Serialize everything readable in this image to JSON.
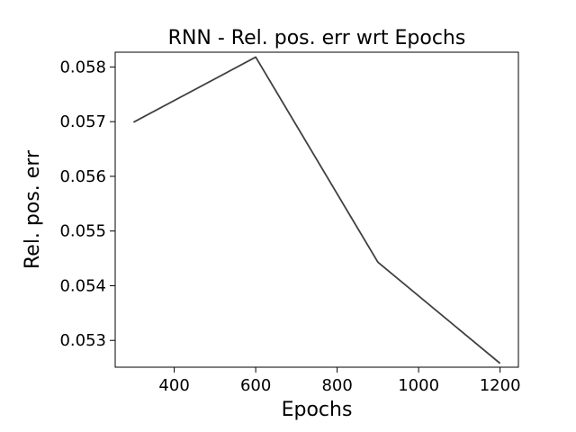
{
  "chart_data": {
    "type": "line",
    "title": "RNN - Rel. pos. err wrt Epochs",
    "xlabel": "Epochs",
    "ylabel": "Rel. pos. err",
    "x": [
      300,
      600,
      900,
      1200
    ],
    "series": [
      {
        "values": [
          0.05699,
          0.05818,
          0.05443,
          0.05258
        ],
        "color": "#404040"
      }
    ],
    "xticks": [
      400,
      600,
      800,
      1000,
      1200
    ],
    "xtick_labels": [
      "400",
      "600",
      "800",
      "1000",
      "1200"
    ],
    "yticks": [
      0.053,
      0.054,
      0.055,
      0.056,
      0.057,
      0.058
    ],
    "ytick_labels": [
      "0.053",
      "0.054",
      "0.055",
      "0.056",
      "0.057",
      "0.058"
    ],
    "xlim": [
      255,
      1245
    ],
    "ylim": [
      0.05251,
      0.05827
    ],
    "grid": false,
    "legend": "none"
  }
}
